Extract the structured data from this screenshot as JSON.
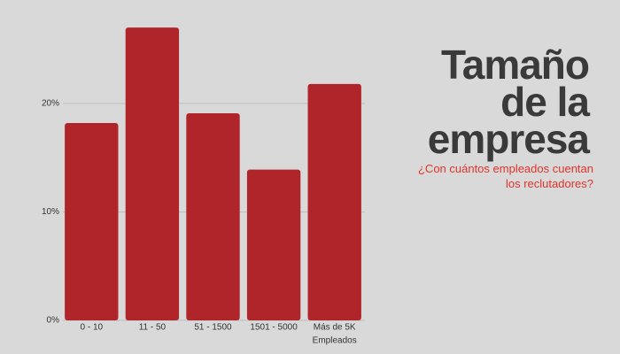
{
  "chart_data": {
    "type": "bar",
    "title": "Tamaño de la empresa",
    "subtitle": "¿Con cuántos empleados cuentan los reclutadores?",
    "x_label": "Empleados",
    "categories": [
      "0 - 10",
      "11 - 50",
      "51 - 1500",
      "1501 - 5000",
      "Más de 5K"
    ],
    "values": [
      18.2,
      27.0,
      19.1,
      13.9,
      21.8
    ],
    "color": "#b0252a",
    "ylim": [
      0,
      27.5
    ],
    "yticks": [
      {
        "value": 0,
        "label": "0%"
      },
      {
        "value": 10,
        "label": "10%"
      },
      {
        "value": 20,
        "label": "20%"
      }
    ],
    "grid": true
  }
}
